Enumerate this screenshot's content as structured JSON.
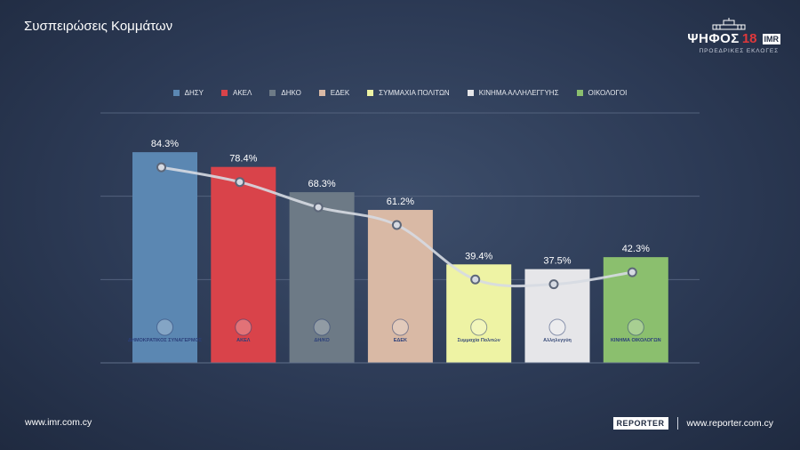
{
  "title": "Συσπειρώσεις Κομμάτων",
  "brand": {
    "word": "ΨΗΦΟΣ",
    "number": "18",
    "partner": "IMR",
    "subtitle": "ΠΡΟΕΔΡΙΚΕΣ ΕΚΛΟΓΕΣ"
  },
  "chart_data": {
    "type": "bar",
    "categories": [
      "ΔΗΣΥ",
      "ΑΚΕΛ",
      "ΔΗΚΟ",
      "ΕΔΕΚ",
      "ΣΥΜΜΑΧΙΑ ΠΟΛΙΤΩΝ",
      "ΚΙΝΗΜΑ ΑΛΛΗΛΕΓΓΥΗΣ",
      "ΟΙΚΟΛΟΓΟΙ"
    ],
    "values": [
      84.3,
      78.4,
      68.3,
      61.2,
      39.4,
      37.5,
      42.3
    ],
    "value_labels": [
      "84.3%",
      "78.4%",
      "68.3%",
      "61.2%",
      "39.4%",
      "37.5%",
      "42.3%"
    ],
    "colors": [
      "#5b87b2",
      "#d9434a",
      "#6d7a86",
      "#d9b9a5",
      "#eef3a4",
      "#e6e6e9",
      "#8bbf6e"
    ],
    "ylim": [
      0,
      100
    ],
    "overlay": "smoothed trend line connecting bar values",
    "legend": "top-center",
    "grid": true,
    "bar_logos": [
      {
        "text": "ΔΗΜΟΚΡΑΤΙΚΟΣ ΣΥΝΑΓΕΡΜΟΣ"
      },
      {
        "text": "ΑΚΕΛ"
      },
      {
        "text": "ΔΗ/ΚΟ"
      },
      {
        "text": "ΕΔΕΚ"
      },
      {
        "text": "Συμμαχία Πολιτών"
      },
      {
        "text": "Αλληλεγγύη"
      },
      {
        "text": "ΚΙΝΗΜΑ ΟΙΚΟΛΟΓΩΝ"
      }
    ]
  },
  "footer": {
    "left": "www.imr.com.cy",
    "right": "www.reporter.com.cy",
    "reporter_logo": "REPORTER"
  }
}
